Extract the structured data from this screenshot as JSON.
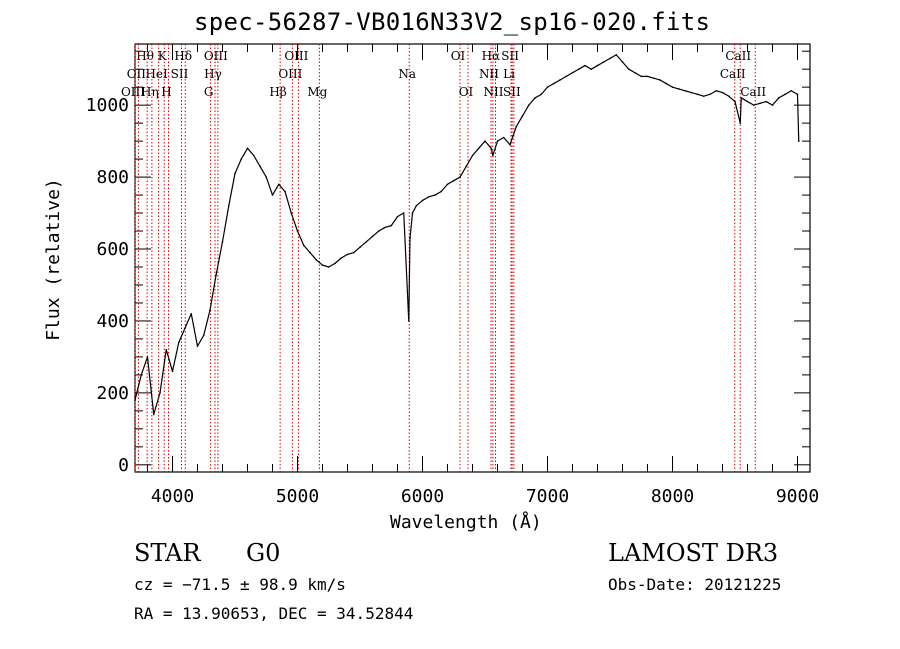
{
  "chart_data": {
    "type": "line",
    "title": "spec-56287-VB016N33V2_sp16-020.fits",
    "xlabel": "Wavelength (Å)",
    "ylabel": "Flux (relative)",
    "xlim": [
      3700,
      9100
    ],
    "ylim": [
      -20,
      1170
    ],
    "x_ticks": [
      {
        "value": 4000,
        "label": "4000"
      },
      {
        "value": 5000,
        "label": "5000"
      },
      {
        "value": 6000,
        "label": "6000"
      },
      {
        "value": 7000,
        "label": "7000"
      },
      {
        "value": 8000,
        "label": "8000"
      },
      {
        "value": 9000,
        "label": "9000"
      }
    ],
    "y_ticks": [
      {
        "value": 0,
        "label": "0"
      },
      {
        "value": 200,
        "label": "200"
      },
      {
        "value": 400,
        "label": "400"
      },
      {
        "value": 600,
        "label": "600"
      },
      {
        "value": 800,
        "label": "800"
      },
      {
        "value": 1000,
        "label": "1000"
      }
    ],
    "series": [
      {
        "name": "spectrum",
        "x": [
          3700,
          3750,
          3800,
          3850,
          3900,
          3950,
          4000,
          4050,
          4100,
          4150,
          4200,
          4250,
          4300,
          4350,
          4400,
          4450,
          4500,
          4550,
          4600,
          4650,
          4700,
          4750,
          4800,
          4850,
          4900,
          4950,
          5000,
          5050,
          5100,
          5150,
          5200,
          5250,
          5300,
          5350,
          5400,
          5450,
          5500,
          5550,
          5600,
          5650,
          5700,
          5750,
          5800,
          5850,
          5890,
          5900,
          5920,
          5950,
          6000,
          6050,
          6100,
          6150,
          6200,
          6250,
          6300,
          6350,
          6400,
          6450,
          6500,
          6550,
          6563,
          6600,
          6650,
          6700,
          6750,
          6800,
          6850,
          6900,
          6950,
          7000,
          7050,
          7100,
          7150,
          7200,
          7250,
          7300,
          7350,
          7400,
          7450,
          7500,
          7550,
          7600,
          7650,
          7700,
          7750,
          7800,
          7850,
          7900,
          7950,
          8000,
          8050,
          8100,
          8150,
          8200,
          8250,
          8300,
          8350,
          8400,
          8450,
          8500,
          8542,
          8550,
          8600,
          8650,
          8700,
          8750,
          8800,
          8850,
          8900,
          8950,
          9000,
          9010
        ],
        "y": [
          180,
          250,
          300,
          140,
          200,
          320,
          260,
          340,
          380,
          420,
          330,
          360,
          430,
          530,
          620,
          720,
          810,
          850,
          880,
          860,
          830,
          800,
          750,
          780,
          760,
          700,
          650,
          610,
          590,
          570,
          555,
          550,
          560,
          575,
          585,
          590,
          605,
          620,
          635,
          650,
          660,
          665,
          690,
          700,
          400,
          630,
          700,
          720,
          735,
          745,
          750,
          760,
          780,
          790,
          800,
          830,
          860,
          880,
          900,
          880,
          860,
          900,
          910,
          890,
          940,
          970,
          1000,
          1020,
          1030,
          1050,
          1060,
          1070,
          1080,
          1090,
          1100,
          1110,
          1100,
          1110,
          1120,
          1130,
          1140,
          1120,
          1100,
          1090,
          1080,
          1080,
          1075,
          1070,
          1060,
          1050,
          1045,
          1040,
          1035,
          1030,
          1025,
          1030,
          1040,
          1035,
          1025,
          1010,
          950,
          1020,
          1010,
          1000,
          1005,
          1010,
          1000,
          1020,
          1030,
          1040,
          1030,
          900
        ]
      }
    ],
    "emission_lines": [
      {
        "name": "Hθ",
        "wavelength": 3797,
        "row": 0
      },
      {
        "name": "OII",
        "wavelength": 3727,
        "row": 1
      },
      {
        "name": "OIII",
        "wavelength": 3700,
        "row": 2
      },
      {
        "name": "HeI",
        "wavelength": 3889,
        "row": 1
      },
      {
        "name": "Hη",
        "wavelength": 3835,
        "row": 2
      },
      {
        "name": "K",
        "wavelength": 3934,
        "row": 0
      },
      {
        "name": "H",
        "wavelength": 3968,
        "row": 2
      },
      {
        "name": "SII",
        "wavelength": 4072,
        "row": 1
      },
      {
        "name": "Hδ",
        "wavelength": 4102,
        "row": 0
      },
      {
        "name": "OIII",
        "wavelength": 4363,
        "row": 0
      },
      {
        "name": "Hγ",
        "wavelength": 4340,
        "row": 1
      },
      {
        "name": "G",
        "wavelength": 4305,
        "row": 2
      },
      {
        "name": "OIII",
        "wavelength": 5007,
        "row": 0
      },
      {
        "name": "OIII",
        "wavelength": 4959,
        "row": 1
      },
      {
        "name": "Hβ",
        "wavelength": 4861,
        "row": 2
      },
      {
        "name": "Mg",
        "wavelength": 5175,
        "row": 2
      },
      {
        "name": "Na",
        "wavelength": 5894,
        "row": 1
      },
      {
        "name": "OI",
        "wavelength": 6300,
        "row": 0
      },
      {
        "name": "OI",
        "wavelength": 6364,
        "row": 2
      },
      {
        "name": "Hα",
        "wavelength": 6563,
        "row": 0
      },
      {
        "name": "SII",
        "wavelength": 6717,
        "row": 0
      },
      {
        "name": "NII",
        "wavelength": 6548,
        "row": 1
      },
      {
        "name": "Li",
        "wavelength": 6708,
        "row": 1
      },
      {
        "name": "NII",
        "wavelength": 6584,
        "row": 2
      },
      {
        "name": "SII",
        "wavelength": 6731,
        "row": 2
      },
      {
        "name": "CaII",
        "wavelength": 8542,
        "row": 0
      },
      {
        "name": "CaII",
        "wavelength": 8498,
        "row": 1
      },
      {
        "name": "CaII",
        "wavelength": 8662,
        "row": 2
      }
    ]
  },
  "footer": {
    "object_type": "STAR",
    "subclass": "G0",
    "velocity": "cz = −71.5 ± 98.9 km/s",
    "coordinates": "RA =  13.90653, DEC =  34.52844",
    "survey": "LAMOST DR3",
    "obs_date": "Obs-Date: 20121225"
  },
  "colors": {
    "emission_line": "#d40000",
    "axis": "#000000",
    "background": "#ffffff"
  }
}
